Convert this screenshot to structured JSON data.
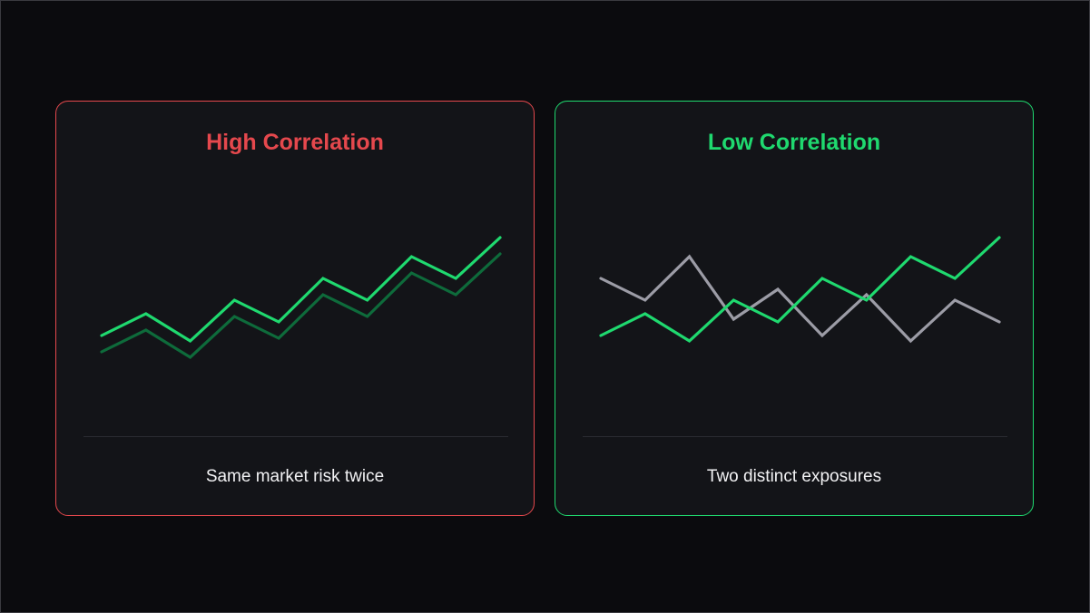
{
  "colors": {
    "background": "#0b0b0e",
    "panel": "#131418",
    "high_accent": "#e5484d",
    "low_accent": "#1fd96f",
    "series_bright": "#1fd96f",
    "series_dim": "#0e6b3b",
    "series_gray": "#9c9ca6"
  },
  "panels": [
    {
      "title": "High Correlation",
      "caption": "Same market risk twice"
    },
    {
      "title": "Low Correlation",
      "caption": "Two distinct exposures"
    }
  ],
  "chart_data": [
    {
      "type": "line",
      "title": "High Correlation",
      "xlabel": "",
      "ylabel": "",
      "ylim": [
        0,
        10
      ],
      "grid": false,
      "x": [
        0,
        1,
        2,
        3,
        4,
        5,
        6,
        7,
        8,
        9
      ],
      "series": [
        {
          "color": "#1fd96f",
          "values": [
            3.4,
            4.2,
            3.2,
            4.7,
            3.9,
            5.5,
            4.7,
            6.3,
            5.5,
            7.0
          ]
        },
        {
          "color": "#0e6b3b",
          "values": [
            2.8,
            3.6,
            2.6,
            4.1,
            3.3,
            4.9,
            4.1,
            5.7,
            4.9,
            6.4
          ]
        }
      ]
    },
    {
      "type": "line",
      "title": "Low Correlation",
      "xlabel": "",
      "ylabel": "",
      "ylim": [
        0,
        10
      ],
      "grid": false,
      "x": [
        0,
        1,
        2,
        3,
        4,
        5,
        6,
        7,
        8,
        9
      ],
      "series": [
        {
          "color": "#1fd96f",
          "values": [
            3.4,
            4.2,
            3.2,
            4.7,
            3.9,
            5.5,
            4.7,
            6.3,
            5.5,
            7.0
          ]
        },
        {
          "color": "#9c9ca6",
          "values": [
            5.5,
            4.7,
            6.3,
            4.0,
            5.1,
            3.4,
            4.9,
            3.2,
            4.7,
            3.9
          ]
        }
      ]
    }
  ]
}
